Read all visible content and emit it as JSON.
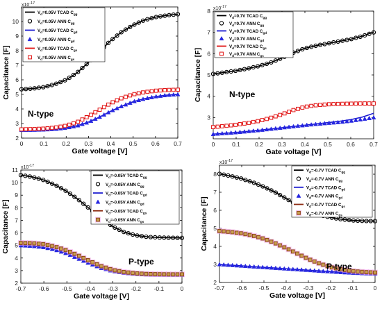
{
  "colors": {
    "tcad_gg": "#000000",
    "ann_gg": "#000000",
    "tcad_gd": "#1a1ad0",
    "ann_gd": "#2626e0",
    "tcad_gs_n": "#e01010",
    "ann_gs_n": "#e01010",
    "tcad_gs_p": "#8b2a10",
    "ann_gs_p": "#8b4513",
    "ann_gs_p_glow": "#f0a0e8"
  },
  "chart_data": [
    {
      "id": "a",
      "type": "line",
      "exponent": "x10",
      "exponent_power": "-17",
      "xlabel": "Gate voltage [V]",
      "ylabel": "Capacitance [F]",
      "annotation": "N-type",
      "xlim": [
        0,
        0.7
      ],
      "ylim": [
        2,
        11
      ],
      "xticks": [
        "0",
        "0.1",
        "0.2",
        "0.3",
        "0.4",
        "0.5",
        "0.6",
        "0.7"
      ],
      "xtick_values": [
        0,
        0.1,
        0.2,
        0.3,
        0.4,
        0.5,
        0.6,
        0.7
      ],
      "yticks": [
        "2",
        "3",
        "4",
        "5",
        "6",
        "7",
        "8",
        "9",
        "10"
      ],
      "ytick_values": [
        2,
        3,
        4,
        5,
        6,
        7,
        8,
        9,
        10
      ],
      "legend": [
        {
          "base": "V",
          "sub1": "d",
          "text": "=0.05V TCAD C",
          "sub2": "gg",
          "kind": "line",
          "color": "tcad_gg"
        },
        {
          "base": "V",
          "sub1": "d",
          "text": "=0.05V ANN C",
          "sub2": "gg",
          "kind": "circle",
          "color": "ann_gg"
        },
        {
          "base": "V",
          "sub1": "d",
          "text": "=0.05V TCAD C",
          "sub2": "gd",
          "kind": "line",
          "color": "tcad_gd"
        },
        {
          "base": "V",
          "sub1": "d",
          "text": "=0.05V ANN C",
          "sub2": "gd",
          "kind": "triangle",
          "color": "ann_gd"
        },
        {
          "base": "V",
          "sub1": "d",
          "text": "=0.05V TCAD C",
          "sub2": "gs",
          "kind": "line",
          "color": "tcad_gs_n"
        },
        {
          "base": "V",
          "sub1": "d",
          "text": "=0.05V ANN C",
          "sub2": "gs",
          "kind": "square",
          "color": "ann_gs_n"
        }
      ],
      "x": [
        0,
        0.05,
        0.1,
        0.15,
        0.2,
        0.25,
        0.3,
        0.35,
        0.4,
        0.45,
        0.5,
        0.55,
        0.6,
        0.65,
        0.7
      ],
      "series": [
        {
          "name": "V=0.05V TCAD Cgg",
          "kind": "line",
          "color": "tcad_gg",
          "values": [
            5.35,
            5.4,
            5.5,
            5.7,
            6.0,
            6.5,
            7.2,
            7.95,
            8.7,
            9.3,
            9.75,
            10.1,
            10.3,
            10.42,
            10.5
          ]
        },
        {
          "name": "V=0.05V ANN Cgg",
          "kind": "circle",
          "color": "ann_gg",
          "values": [
            5.35,
            5.4,
            5.5,
            5.7,
            6.0,
            6.5,
            7.2,
            7.95,
            8.7,
            9.3,
            9.75,
            10.1,
            10.3,
            10.42,
            10.5
          ]
        },
        {
          "name": "V=0.05V TCAD Cgd",
          "kind": "line",
          "color": "tcad_gd",
          "values": [
            2.55,
            2.56,
            2.58,
            2.62,
            2.7,
            2.85,
            3.1,
            3.45,
            3.85,
            4.2,
            4.5,
            4.7,
            4.85,
            4.95,
            5.0
          ]
        },
        {
          "name": "V=0.05V ANN Cgd",
          "kind": "triangle",
          "color": "ann_gd",
          "values": [
            2.55,
            2.56,
            2.58,
            2.62,
            2.7,
            2.85,
            3.1,
            3.45,
            3.85,
            4.2,
            4.5,
            4.7,
            4.85,
            4.95,
            5.0
          ]
        },
        {
          "name": "V=0.05V TCAD Cgs",
          "kind": "line",
          "color": "tcad_gs_n",
          "values": [
            2.6,
            2.62,
            2.65,
            2.72,
            2.85,
            3.1,
            3.5,
            3.95,
            4.4,
            4.75,
            5.0,
            5.15,
            5.25,
            5.3,
            5.32
          ]
        },
        {
          "name": "V=0.05V ANN Cgs",
          "kind": "square",
          "color": "ann_gs_n",
          "values": [
            2.6,
            2.62,
            2.65,
            2.72,
            2.85,
            3.1,
            3.5,
            3.95,
            4.4,
            4.75,
            5.0,
            5.15,
            5.25,
            5.3,
            5.32
          ]
        }
      ]
    },
    {
      "id": "b",
      "type": "line",
      "exponent": "x10",
      "exponent_power": "-17",
      "xlabel": "Gate voltage [V]",
      "ylabel": "Capacitance [F]",
      "annotation": "N-type",
      "xlim": [
        0,
        0.7
      ],
      "ylim": [
        2,
        8
      ],
      "xticks": [
        "0",
        "0.1",
        "0.2",
        "0.3",
        "0.4",
        "0.5",
        "0.6",
        "0.7"
      ],
      "xtick_values": [
        0,
        0.1,
        0.2,
        0.3,
        0.4,
        0.5,
        0.6,
        0.7
      ],
      "yticks": [
        "3",
        "4",
        "5",
        "6",
        "7",
        "8"
      ],
      "ytick_values": [
        3,
        4,
        5,
        6,
        7,
        8
      ],
      "legend": [
        {
          "base": "V",
          "sub1": "d",
          "text": "=0.7V TCAD C",
          "sub2": "gg",
          "kind": "line",
          "color": "tcad_gg"
        },
        {
          "base": "V",
          "sub1": "d",
          "text": "=0.7V ANN C",
          "sub2": "gg",
          "kind": "circle",
          "color": "ann_gg"
        },
        {
          "base": "V",
          "sub1": "d",
          "text": "=0.7V TCAD C",
          "sub2": "gd",
          "kind": "line",
          "color": "tcad_gd"
        },
        {
          "base": "V",
          "sub1": "d",
          "text": "=0.7V ANN C",
          "sub2": "gd",
          "kind": "triangle",
          "color": "ann_gd"
        },
        {
          "base": "V",
          "sub1": "d",
          "text": "=0.7V TCAD C",
          "sub2": "gs",
          "kind": "line",
          "color": "tcad_gs_n"
        },
        {
          "base": "V",
          "sub1": "d",
          "text": "=0.7V ANN C",
          "sub2": "gs",
          "kind": "square",
          "color": "ann_gs_n"
        }
      ],
      "x": [
        0,
        0.05,
        0.1,
        0.15,
        0.2,
        0.25,
        0.3,
        0.35,
        0.4,
        0.45,
        0.5,
        0.55,
        0.6,
        0.65,
        0.7
      ],
      "series": [
        {
          "name": "V=0.7V TCAD Cgg",
          "kind": "line",
          "color": "tcad_gg",
          "values": [
            5.05,
            5.12,
            5.2,
            5.3,
            5.42,
            5.58,
            5.8,
            6.05,
            6.25,
            6.38,
            6.48,
            6.58,
            6.68,
            6.82,
            7.02
          ]
        },
        {
          "name": "V=0.7V ANN Cgg",
          "kind": "circle",
          "color": "ann_gg",
          "values": [
            5.05,
            5.12,
            5.2,
            5.3,
            5.42,
            5.58,
            5.8,
            6.05,
            6.25,
            6.38,
            6.48,
            6.58,
            6.68,
            6.82,
            7.0
          ]
        },
        {
          "name": "V=0.7V TCAD Cgd",
          "kind": "line",
          "color": "tcad_gd",
          "values": [
            2.22,
            2.26,
            2.3,
            2.35,
            2.4,
            2.46,
            2.52,
            2.58,
            2.64,
            2.7,
            2.76,
            2.82,
            2.9,
            3.02,
            3.2
          ]
        },
        {
          "name": "V=0.7V ANN Cgd",
          "kind": "triangle",
          "color": "ann_gd",
          "values": [
            2.22,
            2.26,
            2.3,
            2.35,
            2.4,
            2.46,
            2.52,
            2.58,
            2.64,
            2.69,
            2.74,
            2.78,
            2.84,
            2.92,
            3.0
          ]
        },
        {
          "name": "V=0.7V TCAD Cgs",
          "kind": "line",
          "color": "tcad_gs_n",
          "values": [
            2.55,
            2.6,
            2.66,
            2.74,
            2.84,
            2.98,
            3.15,
            3.35,
            3.5,
            3.58,
            3.62,
            3.63,
            3.64,
            3.62,
            3.58
          ]
        },
        {
          "name": "V=0.7V ANN Cgs",
          "kind": "square",
          "color": "ann_gs_n",
          "values": [
            2.55,
            2.6,
            2.66,
            2.74,
            2.84,
            2.98,
            3.15,
            3.35,
            3.5,
            3.58,
            3.62,
            3.64,
            3.65,
            3.66,
            3.66
          ]
        }
      ]
    },
    {
      "id": "c",
      "type": "line",
      "exponent": "x10",
      "exponent_power": "-17",
      "xlabel": "Gate voltage [V]",
      "ylabel": "Capacitance [F]",
      "annotation": "P-type",
      "xlim": [
        -0.7,
        0
      ],
      "ylim": [
        2,
        11
      ],
      "xticks": [
        "-0.7",
        "-0.6",
        "-0.5",
        "-0.4",
        "-0.3",
        "-0.2",
        "-0.1",
        "0"
      ],
      "xtick_values": [
        -0.7,
        -0.6,
        -0.5,
        -0.4,
        -0.3,
        -0.2,
        -0.1,
        0
      ],
      "yticks": [
        "2",
        "3",
        "4",
        "5",
        "6",
        "7",
        "8",
        "9",
        "10",
        "11"
      ],
      "ytick_values": [
        2,
        3,
        4,
        5,
        6,
        7,
        8,
        9,
        10,
        11
      ],
      "legend": [
        {
          "base": "V",
          "sub1": "d",
          "text": "=-0.05V TCAD C",
          "sub2": "gg",
          "kind": "line",
          "color": "tcad_gg"
        },
        {
          "base": "V",
          "sub1": "d",
          "text": "=-0.05V ANN C",
          "sub2": "gg",
          "kind": "circle",
          "color": "ann_gg"
        },
        {
          "base": "V",
          "sub1": "d",
          "text": "=-0.05V TCAD C",
          "sub2": "gd",
          "kind": "line",
          "color": "tcad_gd"
        },
        {
          "base": "V",
          "sub1": "d",
          "text": "=-0.05V ANN C",
          "sub2": "gd",
          "kind": "triangle",
          "color": "ann_gd"
        },
        {
          "base": "V",
          "sub1": "d",
          "text": "=-0.05V TCAD C",
          "sub2": "gs",
          "kind": "line",
          "color": "tcad_gs_p"
        },
        {
          "base": "V",
          "sub1": "d",
          "text": "=-0.05V ANN C",
          "sub2": "gs",
          "kind": "square",
          "color": "ann_gs_p"
        }
      ],
      "x": [
        -0.7,
        -0.65,
        -0.6,
        -0.55,
        -0.5,
        -0.45,
        -0.4,
        -0.35,
        -0.3,
        -0.25,
        -0.2,
        -0.15,
        -0.1,
        -0.05,
        0
      ],
      "series": [
        {
          "name": "V=-0.05V TCAD Cgg",
          "kind": "line",
          "color": "tcad_gg",
          "values": [
            10.6,
            10.45,
            10.2,
            9.8,
            9.3,
            8.65,
            7.9,
            7.15,
            6.5,
            6.05,
            5.8,
            5.68,
            5.63,
            5.61,
            5.6
          ]
        },
        {
          "name": "V=-0.05V ANN Cgg",
          "kind": "circle",
          "color": "ann_gg",
          "values": [
            10.6,
            10.45,
            10.2,
            9.8,
            9.3,
            8.65,
            7.9,
            7.15,
            6.5,
            6.05,
            5.8,
            5.68,
            5.63,
            5.61,
            5.6
          ]
        },
        {
          "name": "V=-0.05V TCAD Cgd",
          "kind": "line",
          "color": "tcad_gd",
          "values": [
            5.0,
            4.95,
            4.85,
            4.65,
            4.35,
            3.95,
            3.55,
            3.2,
            2.95,
            2.8,
            2.72,
            2.68,
            2.67,
            2.66,
            2.66
          ]
        },
        {
          "name": "V=-0.05V ANN Cgd",
          "kind": "triangle",
          "color": "ann_gd",
          "values": [
            5.0,
            4.95,
            4.85,
            4.65,
            4.35,
            3.95,
            3.55,
            3.2,
            2.95,
            2.8,
            2.72,
            2.68,
            2.67,
            2.66,
            2.66
          ]
        },
        {
          "name": "V=-0.05V TCAD Cgs",
          "kind": "line",
          "color": "tcad_gs_p",
          "values": [
            5.2,
            5.18,
            5.1,
            4.9,
            4.6,
            4.2,
            3.75,
            3.35,
            3.05,
            2.88,
            2.78,
            2.73,
            2.71,
            2.7,
            2.7
          ]
        },
        {
          "name": "V=-0.05V ANN Cgs",
          "kind": "square",
          "color": "ann_gs_p",
          "values": [
            5.2,
            5.18,
            5.1,
            4.9,
            4.6,
            4.2,
            3.75,
            3.35,
            3.05,
            2.88,
            2.78,
            2.73,
            2.71,
            2.7,
            2.7
          ]
        }
      ]
    },
    {
      "id": "d",
      "type": "line",
      "exponent": "x10",
      "exponent_power": "-17",
      "xlabel": "Gate voltage [V]",
      "ylabel": "Capacitance [F]",
      "annotation": "P-type",
      "xlim": [
        -0.7,
        0
      ],
      "ylim": [
        2,
        8.5
      ],
      "xticks": [
        "-0.7",
        "-0.6",
        "-0.5",
        "-0.4",
        "-0.3",
        "-0.2",
        "-0.1",
        "0"
      ],
      "xtick_values": [
        -0.7,
        -0.6,
        -0.5,
        -0.4,
        -0.3,
        -0.2,
        -0.1,
        0
      ],
      "yticks": [
        "2",
        "3",
        "4",
        "5",
        "6",
        "7",
        "8"
      ],
      "ytick_values": [
        2,
        3,
        4,
        5,
        6,
        7,
        8
      ],
      "legend": [
        {
          "base": "V",
          "sub1": "d",
          "text": "=-0.7V TCAD C",
          "sub2": "gg",
          "kind": "line",
          "color": "tcad_gg"
        },
        {
          "base": "V",
          "sub1": "d",
          "text": "=-0.7V ANN C",
          "sub2": "gg",
          "kind": "circle",
          "color": "ann_gg"
        },
        {
          "base": "V",
          "sub1": "d",
          "text": "=-0.7V TCAD C",
          "sub2": "gd",
          "kind": "line",
          "color": "tcad_gd"
        },
        {
          "base": "V",
          "sub1": "d",
          "text": "=-0.7V ANN C",
          "sub2": "gd",
          "kind": "triangle",
          "color": "ann_gd"
        },
        {
          "base": "V",
          "sub1": "d",
          "text": "=-0.7V TCAD C",
          "sub2": "gs",
          "kind": "line",
          "color": "tcad_gs_p"
        },
        {
          "base": "V",
          "sub1": "d",
          "text": "=-0.7V ANN C",
          "sub2": "gs",
          "kind": "square",
          "color": "ann_gs_p"
        }
      ],
      "x": [
        -0.7,
        -0.65,
        -0.6,
        -0.55,
        -0.5,
        -0.45,
        -0.4,
        -0.35,
        -0.3,
        -0.25,
        -0.2,
        -0.15,
        -0.1,
        -0.05,
        0
      ],
      "series": [
        {
          "name": "V=-0.7V TCAD Cgg",
          "kind": "line",
          "color": "tcad_gg",
          "values": [
            8.02,
            7.9,
            7.75,
            7.55,
            7.3,
            7.0,
            6.65,
            6.3,
            6.0,
            5.75,
            5.6,
            5.5,
            5.44,
            5.41,
            5.4
          ]
        },
        {
          "name": "V=-0.7V ANN Cgg",
          "kind": "circle",
          "color": "ann_gg",
          "values": [
            8.02,
            7.9,
            7.75,
            7.55,
            7.3,
            7.0,
            6.65,
            6.3,
            6.0,
            5.75,
            5.6,
            5.5,
            5.44,
            5.41,
            5.4
          ]
        },
        {
          "name": "V=-0.7V TCAD Cgd",
          "kind": "line",
          "color": "tcad_gd",
          "values": [
            3.0,
            2.96,
            2.92,
            2.88,
            2.84,
            2.8,
            2.76,
            2.72,
            2.68,
            2.64,
            2.6,
            2.56,
            2.53,
            2.5,
            2.48
          ]
        },
        {
          "name": "V=-0.7V ANN Cgd",
          "kind": "triangle",
          "color": "ann_gd",
          "values": [
            3.0,
            2.96,
            2.92,
            2.88,
            2.84,
            2.8,
            2.76,
            2.72,
            2.68,
            2.64,
            2.6,
            2.56,
            2.53,
            2.5,
            2.48
          ]
        },
        {
          "name": "V=-0.7V TCAD Cgs",
          "kind": "line",
          "color": "tcad_gs_p",
          "values": [
            4.85,
            4.8,
            4.72,
            4.6,
            4.42,
            4.18,
            3.9,
            3.6,
            3.3,
            3.05,
            2.85,
            2.72,
            2.63,
            2.58,
            2.55
          ]
        },
        {
          "name": "V=-0.7V ANN Cgs",
          "kind": "square",
          "color": "ann_gs_p",
          "values": [
            4.85,
            4.8,
            4.72,
            4.6,
            4.42,
            4.18,
            3.9,
            3.6,
            3.3,
            3.05,
            2.85,
            2.72,
            2.63,
            2.58,
            2.55
          ]
        }
      ]
    }
  ]
}
